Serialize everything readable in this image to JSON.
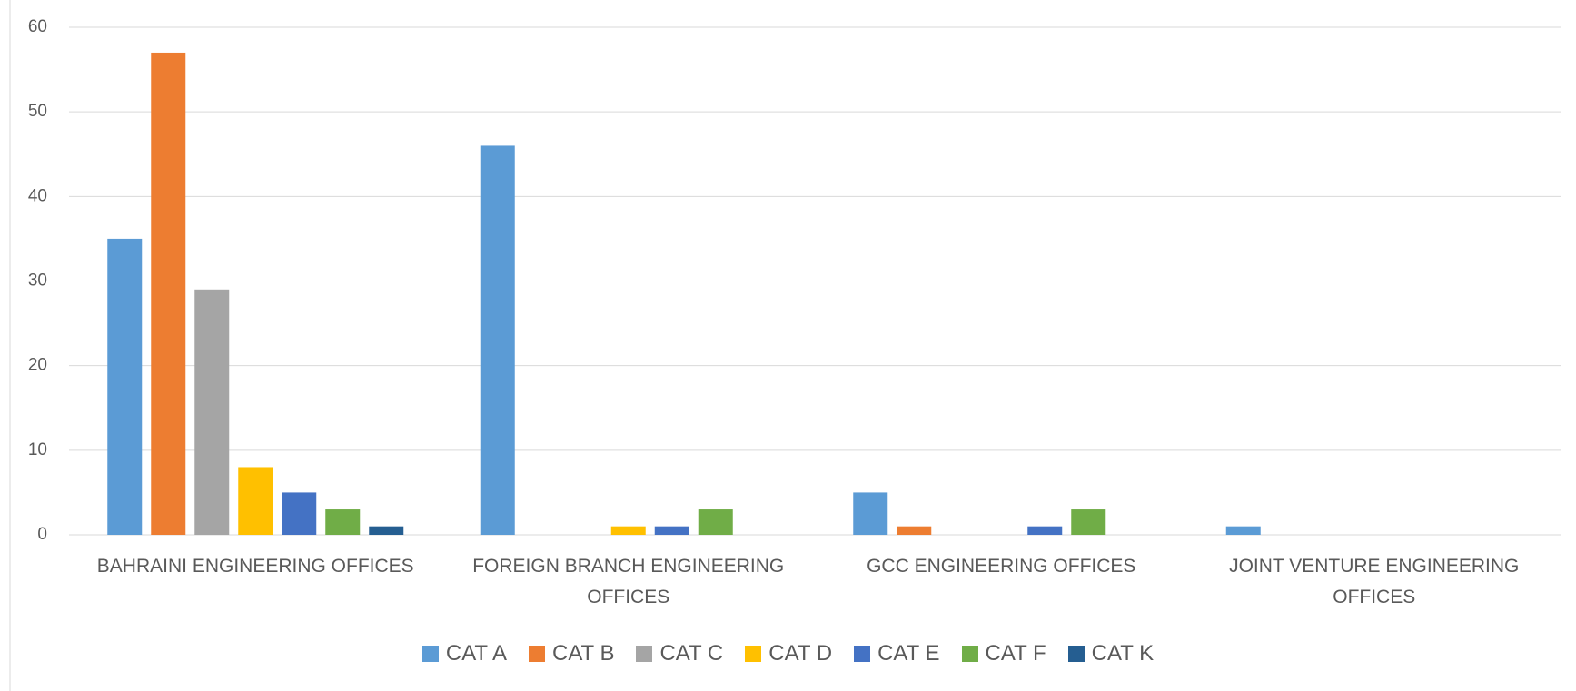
{
  "chart_data": {
    "type": "bar",
    "categories": [
      "BAHRAINI ENGINEERING OFFICES",
      "FOREIGN BRANCH ENGINEERING OFFICES",
      "GCC ENGINEERING OFFICES",
      "JOINT VENTURE ENGINEERING OFFICES"
    ],
    "series": [
      {
        "name": "CAT A",
        "color": "#5b9bd5",
        "values": [
          35,
          46,
          5,
          1
        ]
      },
      {
        "name": "CAT B",
        "color": "#ed7d31",
        "values": [
          57,
          0,
          1,
          0
        ]
      },
      {
        "name": "CAT C",
        "color": "#a5a5a5",
        "values": [
          29,
          0,
          0,
          0
        ]
      },
      {
        "name": "CAT D",
        "color": "#ffc000",
        "values": [
          8,
          1,
          0,
          0
        ]
      },
      {
        "name": "CAT E",
        "color": "#4472c4",
        "values": [
          5,
          1,
          1,
          0
        ]
      },
      {
        "name": "CAT F",
        "color": "#70ad47",
        "values": [
          3,
          3,
          3,
          0
        ]
      },
      {
        "name": "CAT K",
        "color": "#255e91",
        "values": [
          1,
          0,
          0,
          0
        ]
      }
    ],
    "ylim": [
      0,
      60
    ],
    "yticks": [
      0,
      10,
      20,
      30,
      40,
      50,
      60
    ],
    "grid": true,
    "legend": "bottom"
  }
}
